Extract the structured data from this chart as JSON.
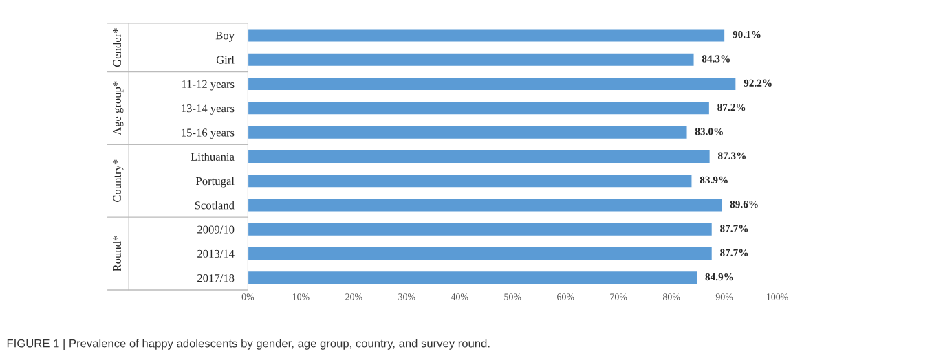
{
  "chart_data": {
    "type": "bar",
    "orientation": "horizontal",
    "categories": [
      "Boy",
      "Girl",
      "11-12 years",
      "13-14 years",
      "15-16 years",
      "Lithuania",
      "Portugal",
      "Scotland",
      "2009/10",
      "2013/14",
      "2017/18"
    ],
    "values": [
      90.1,
      84.3,
      92.2,
      87.2,
      83.0,
      87.3,
      83.9,
      89.6,
      87.7,
      87.7,
      84.9
    ],
    "value_labels": [
      "90.1%",
      "84.3%",
      "92.2%",
      "87.2%",
      "83.0%",
      "87.3%",
      "83.9%",
      "89.6%",
      "87.7%",
      "87.7%",
      "84.9%"
    ],
    "color": "#5b9bd5",
    "xlim": [
      0,
      100
    ],
    "xticks": [
      {
        "value": 0,
        "label": "0%"
      },
      {
        "value": 10,
        "label": "10%"
      },
      {
        "value": 20,
        "label": "20%"
      },
      {
        "value": 30,
        "label": "30%"
      },
      {
        "value": 40,
        "label": "40%"
      },
      {
        "value": 50,
        "label": "50%"
      },
      {
        "value": 60,
        "label": "60%"
      },
      {
        "value": 70,
        "label": "70%"
      },
      {
        "value": 80,
        "label": "80%"
      },
      {
        "value": 90,
        "label": "90%"
      },
      {
        "value": 100,
        "label": "100%"
      }
    ],
    "grid": false,
    "annotations": [
      "Gender*",
      "Age group*",
      "Country*",
      "Round*",
      "FIGURE 1 | Prevalence of happy adolescents by gender, age group, country, and survey round."
    ]
  }
}
